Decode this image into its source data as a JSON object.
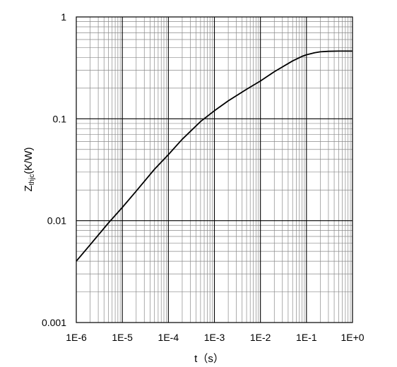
{
  "chart_data": {
    "type": "line",
    "title": "",
    "xlabel": "t（s）",
    "ylabel": {
      "main": "Z",
      "sub": "thjc",
      "unit": "(K/W)"
    },
    "xscale": "log",
    "yscale": "log",
    "xlim": [
      1e-06,
      1
    ],
    "ylim": [
      0.001,
      1
    ],
    "grid": true,
    "x_ticks": [
      {
        "value": 1e-06,
        "label": "1E-6"
      },
      {
        "value": 1e-05,
        "label": "1E-5"
      },
      {
        "value": 0.0001,
        "label": "1E-4"
      },
      {
        "value": 0.001,
        "label": "1E-3"
      },
      {
        "value": 0.01,
        "label": "1E-2"
      },
      {
        "value": 0.1,
        "label": "1E-1"
      },
      {
        "value": 1,
        "label": "1E+0"
      }
    ],
    "y_ticks": [
      {
        "value": 0.001,
        "label": "0.001"
      },
      {
        "value": 0.01,
        "label": "0.01"
      },
      {
        "value": 0.1,
        "label": "0.1"
      },
      {
        "value": 1,
        "label": "1"
      }
    ],
    "series": [
      {
        "x": [
          1e-06,
          2e-06,
          5e-06,
          1e-05,
          2e-05,
          5e-05,
          0.0001,
          0.0002,
          0.0005,
          0.001,
          0.002,
          0.005,
          0.01,
          0.02,
          0.05,
          0.08,
          0.1,
          0.15,
          0.2,
          0.3,
          0.5,
          1
        ],
        "y": [
          0.004,
          0.0058,
          0.0095,
          0.0135,
          0.0195,
          0.032,
          0.0445,
          0.063,
          0.094,
          0.12,
          0.15,
          0.195,
          0.235,
          0.29,
          0.37,
          0.41,
          0.425,
          0.445,
          0.455,
          0.46,
          0.462,
          0.462
        ],
        "color": "#000000"
      }
    ]
  }
}
